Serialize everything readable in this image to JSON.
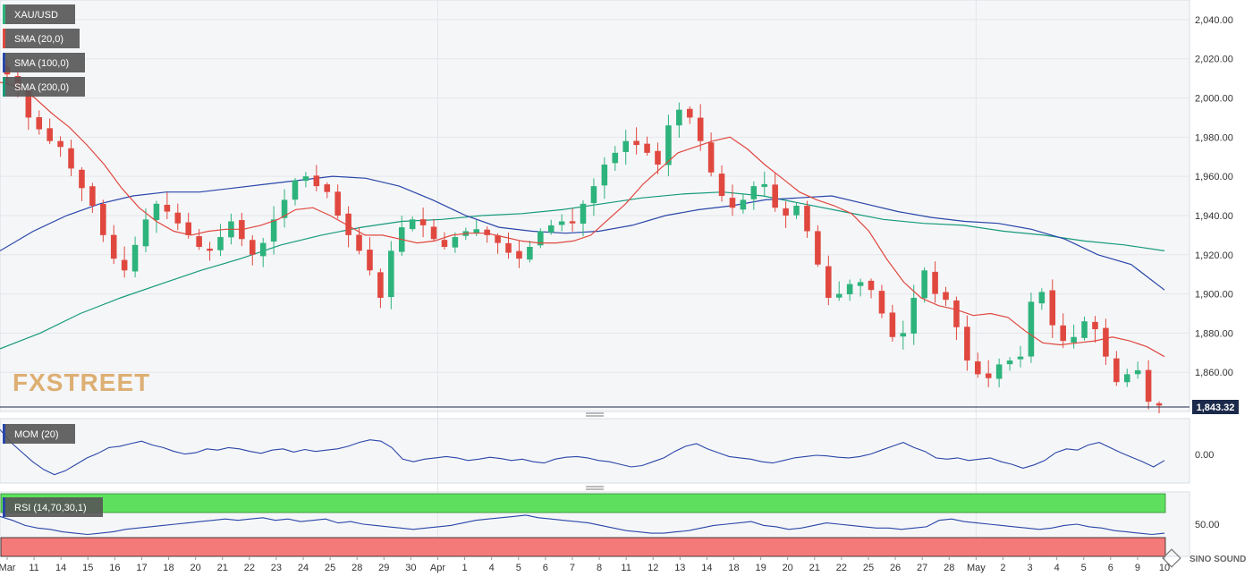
{
  "chart_data": [
    {
      "type": "candlestick",
      "symbol": "XAU/USD",
      "indicators": [
        "SMA (20,0)",
        "SMA (100,0)",
        "SMA (200,0)"
      ],
      "indicator_colors": {
        "sma20": "#e0483f",
        "sma100": "#2946a8",
        "sma200": "#159a7a"
      },
      "up_color": "#2db37c",
      "down_color": "#e0483f",
      "x_labels": [
        "Mar",
        "11",
        "14",
        "15",
        "16",
        "17",
        "18",
        "20",
        "21",
        "22",
        "23",
        "24",
        "25",
        "28",
        "29",
        "30",
        "Apr",
        "1",
        "4",
        "5",
        "6",
        "7",
        "8",
        "11",
        "12",
        "13",
        "14",
        "18",
        "19",
        "20",
        "21",
        "22",
        "25",
        "26",
        "27",
        "28",
        "May",
        "2",
        "3",
        "4",
        "5",
        "6",
        "9",
        "10"
      ],
      "y_ticks": [
        "2,040.00",
        "2,020.00",
        "2,000.00",
        "1,980.00",
        "1,960.00",
        "1,940.00",
        "1,920.00",
        "1,900.00",
        "1,880.00",
        "1,860.00"
      ],
      "ylim": [
        1840,
        2050
      ],
      "last_price": "1,843.32",
      "last_price_value": 1843.32,
      "close_series": [
        2012,
        2004,
        1990,
        1984,
        1978,
        1975,
        1964,
        1954,
        1945,
        1930,
        1918,
        1912,
        1925,
        1938,
        1946,
        1942,
        1936,
        1930,
        1924,
        1922,
        1929,
        1937,
        1928,
        1920,
        1926,
        1938,
        1948,
        1958,
        1960,
        1955,
        1952,
        1940,
        1930,
        1922,
        1912,
        1898,
        1922,
        1934,
        1938,
        1935,
        1928,
        1924,
        1929,
        1932,
        1933,
        1930,
        1926,
        1921,
        1918,
        1924,
        1932,
        1935,
        1937,
        1936,
        1946,
        1955,
        1966,
        1972,
        1978,
        1976,
        1972,
        1966,
        1986,
        1994,
        1990,
        1978,
        1962,
        1950,
        1944,
        1948,
        1955,
        1956,
        1944,
        1940,
        1945,
        1932,
        1915,
        1898,
        1900,
        1905,
        1906,
        1902,
        1890,
        1878,
        1880,
        1898,
        1912,
        1900,
        1897,
        1883,
        1866,
        1859,
        1857,
        1864,
        1866,
        1868,
        1896,
        1901,
        1884,
        1876,
        1878,
        1886,
        1882,
        1868,
        1855,
        1859,
        1861,
        1845,
        1843
      ],
      "sma20_series": [
        2008,
        2006,
        2000,
        1992,
        1985,
        1976,
        1966,
        1954,
        1944,
        1937,
        1932,
        1930,
        1932,
        1933,
        1933,
        1935,
        1938,
        1943,
        1944,
        1940,
        1935,
        1930,
        1930,
        1928,
        1926,
        1927,
        1930,
        1931,
        1931,
        1929,
        1927,
        1926,
        1926,
        1927,
        1930,
        1938,
        1946,
        1956,
        1964,
        1972,
        1975,
        1978,
        1980,
        1974,
        1966,
        1959,
        1952,
        1948,
        1945,
        1941,
        1932,
        1918,
        1906,
        1898,
        1894,
        1892,
        1889,
        1890,
        1888,
        1881,
        1875,
        1874,
        1875,
        1876,
        1878,
        1876,
        1873,
        1868
      ],
      "sma100_series": [
        1922,
        1932,
        1940,
        1946,
        1950,
        1952,
        1952,
        1954,
        1956,
        1958,
        1960,
        1959,
        1955,
        1948,
        1940,
        1934,
        1932,
        1931,
        1932,
        1935,
        1940,
        1943,
        1945,
        1948,
        1949,
        1950,
        1946,
        1942,
        1939,
        1937,
        1936,
        1933,
        1928,
        1920,
        1915,
        1902
      ],
      "sma200_series": [
        1872,
        1880,
        1890,
        1898,
        1905,
        1912,
        1918,
        1925,
        1930,
        1934,
        1937,
        1938,
        1940,
        1941,
        1943,
        1946,
        1949,
        1951,
        1952,
        1950,
        1946,
        1942,
        1938,
        1936,
        1935,
        1932,
        1930,
        1927,
        1925,
        1922
      ],
      "mom_label": "MOM (20)",
      "mom_tick": "0.00",
      "mom_series": [
        40,
        20,
        5,
        -10,
        -22,
        -30,
        -24,
        -14,
        -4,
        3,
        12,
        14,
        18,
        22,
        16,
        12,
        6,
        2,
        4,
        10,
        8,
        12,
        10,
        6,
        3,
        8,
        10,
        5,
        9,
        6,
        8,
        10,
        14,
        20,
        24,
        22,
        12,
        -6,
        -10,
        -6,
        -4,
        -2,
        -4,
        -8,
        -6,
        -3,
        -5,
        -8,
        -6,
        -10,
        -12,
        -6,
        -3,
        -2,
        -4,
        -8,
        -10,
        -14,
        -18,
        -16,
        -10,
        -4,
        6,
        14,
        18,
        10,
        4,
        -2,
        -4,
        -6,
        -10,
        -12,
        -8,
        -4,
        -2,
        0,
        -1,
        -3,
        -4,
        -2,
        2,
        8,
        14,
        20,
        12,
        6,
        -4,
        -6,
        -4,
        -8,
        -6,
        -4,
        -10,
        -14,
        -20,
        -15,
        -8,
        4,
        10,
        8,
        16,
        20,
        12,
        4,
        -3,
        -10,
        -18,
        -8
      ]
    },
    {
      "type": "line",
      "name": "RSI",
      "label": "RSI (14,70,30,1)",
      "ylim": [
        0,
        100
      ],
      "y_ticks": [
        "50.00"
      ],
      "upper_zone": 70,
      "lower_zone": 30,
      "rsi_series": [
        62,
        56,
        48,
        44,
        42,
        38,
        36,
        34,
        36,
        38,
        42,
        44,
        46,
        48,
        50,
        52,
        54,
        56,
        58,
        56,
        58,
        60,
        56,
        58,
        54,
        56,
        58,
        52,
        54,
        50,
        48,
        46,
        44,
        42,
        44,
        46,
        48,
        52,
        56,
        58,
        60,
        62,
        64,
        60,
        58,
        56,
        54,
        52,
        48,
        44,
        40,
        38,
        36,
        36,
        38,
        40,
        44,
        48,
        50,
        52,
        54,
        48,
        46,
        42,
        44,
        48,
        52,
        50,
        48,
        46,
        44,
        44,
        42,
        44,
        46,
        56,
        58,
        54,
        52,
        50,
        48,
        46,
        44,
        42,
        44,
        48,
        50,
        46,
        44,
        40,
        38,
        36,
        34,
        36
      ]
    }
  ],
  "logo": "FXSTREET",
  "watermark": "SINO SOUND"
}
